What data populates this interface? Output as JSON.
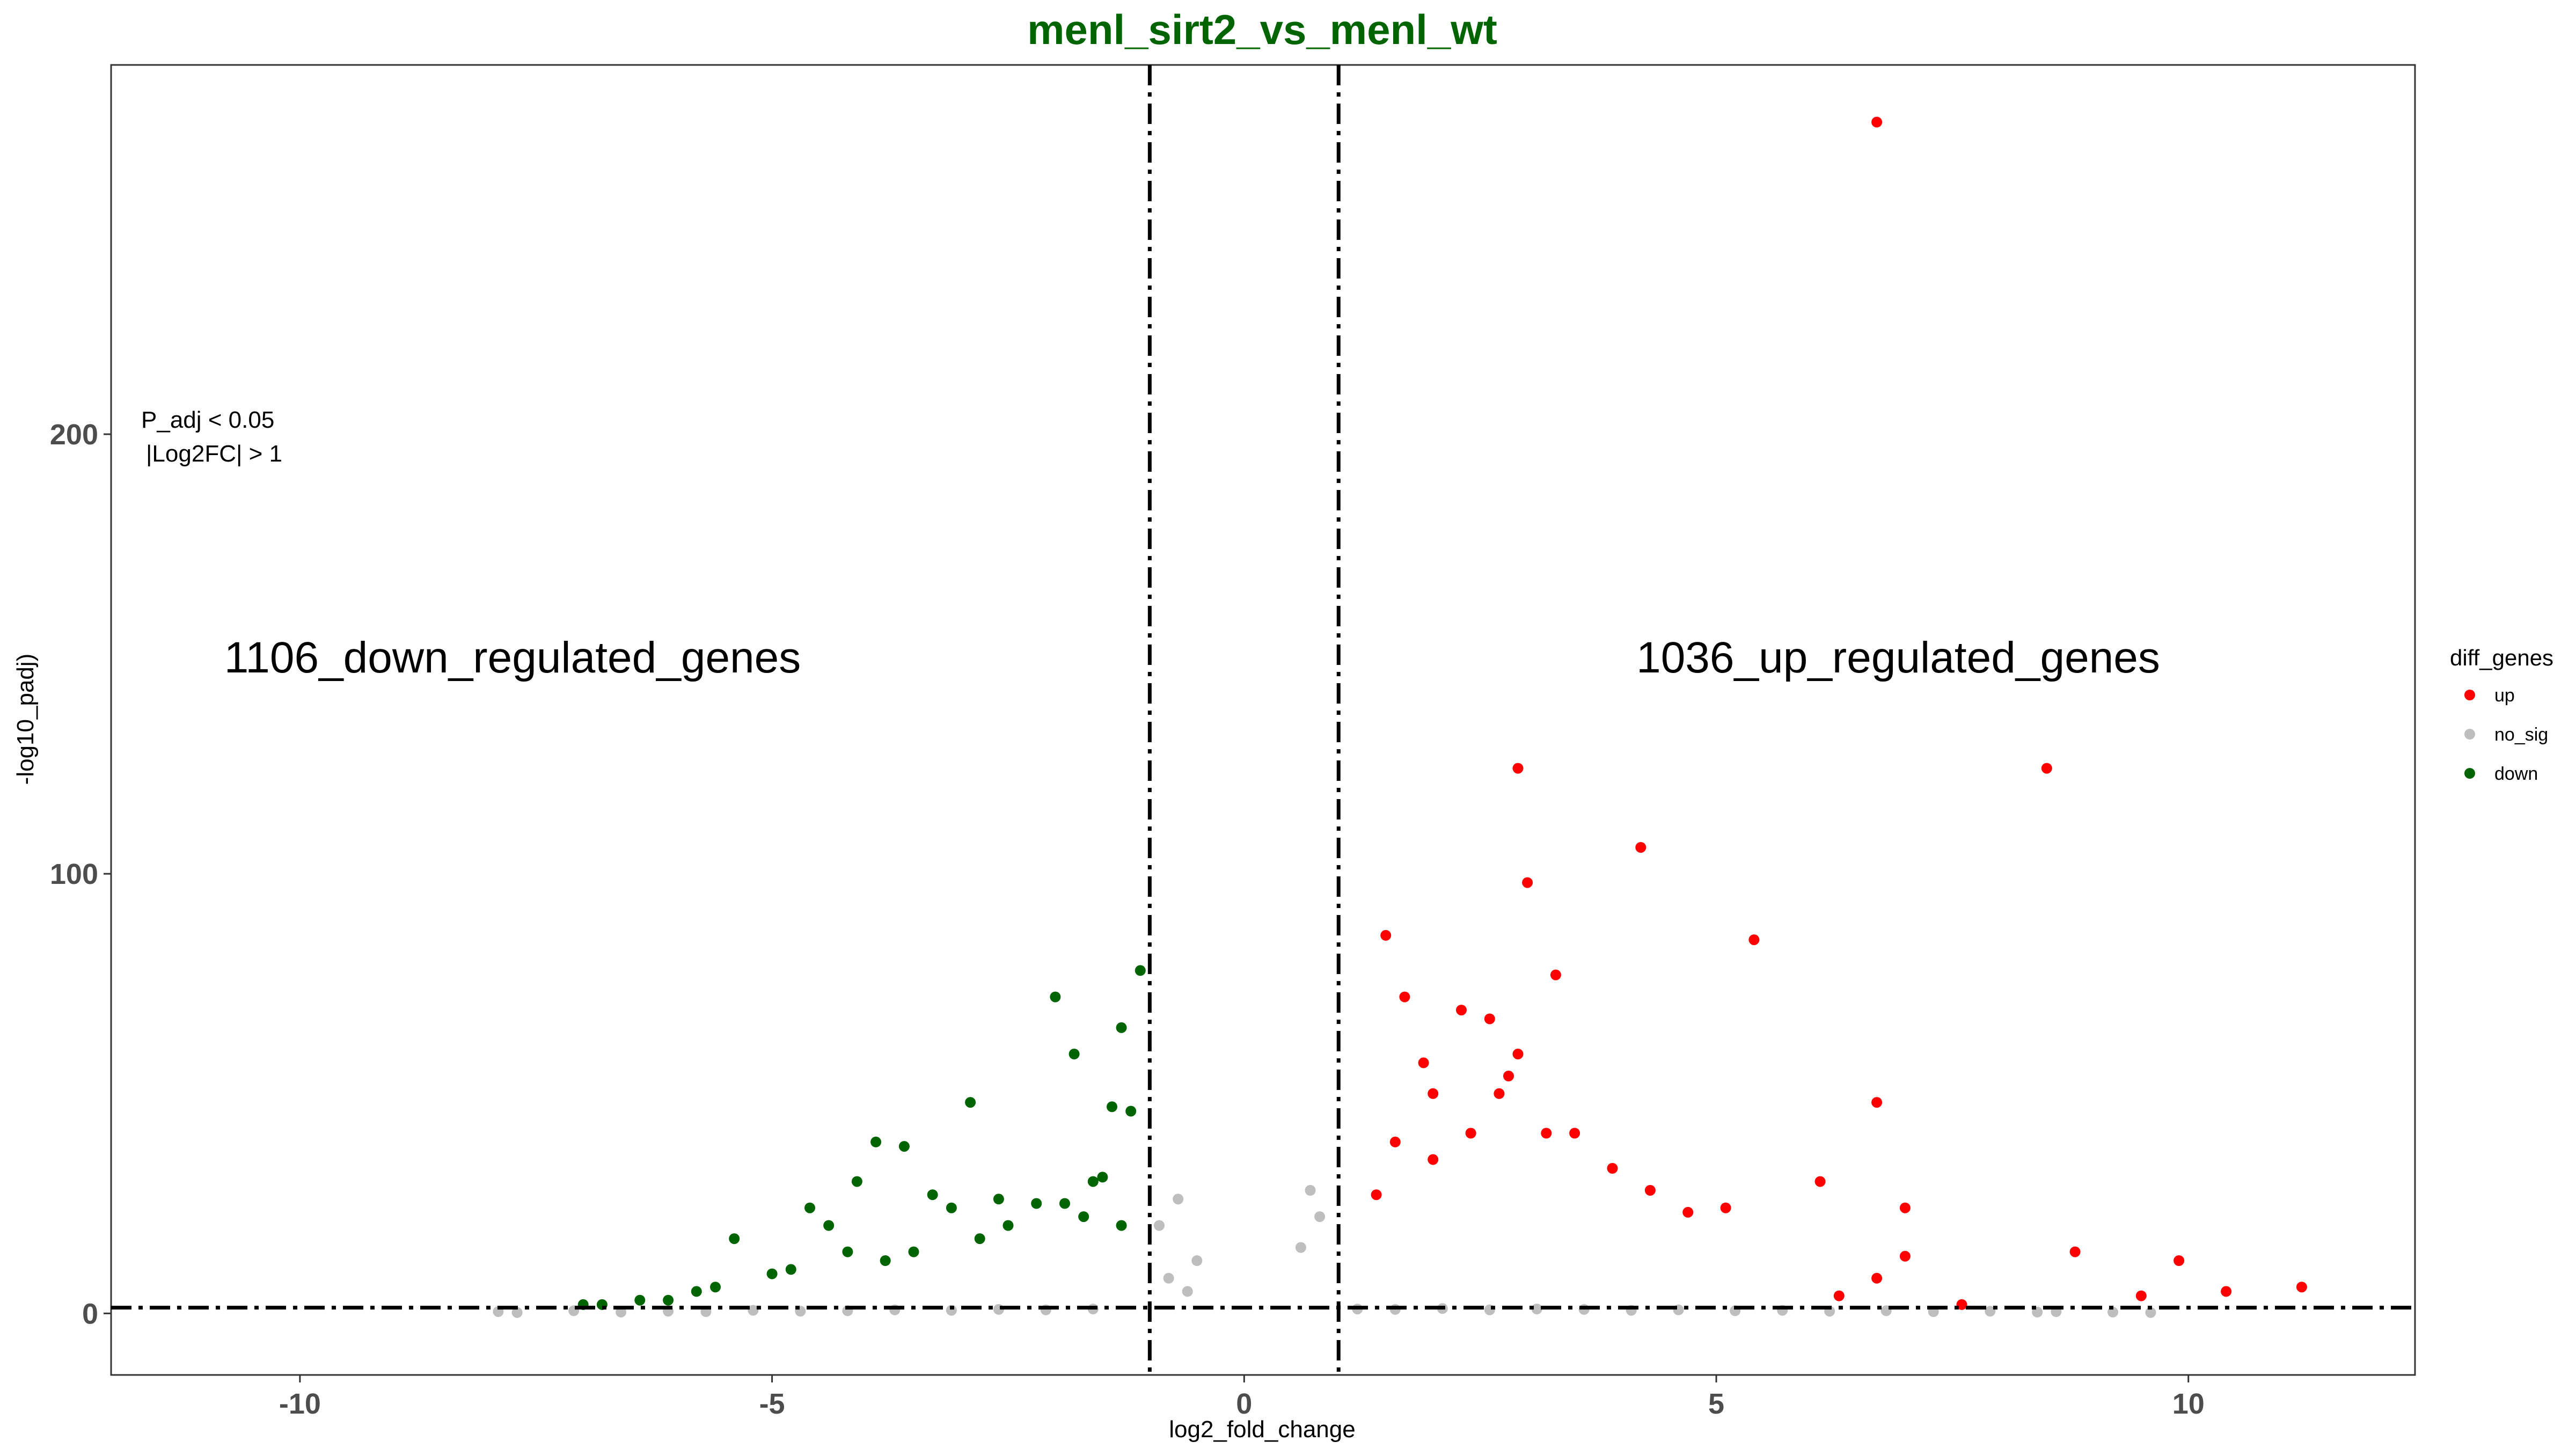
{
  "chart_data": {
    "type": "scatter",
    "title": "menl_sirt2_vs_menl_wt",
    "title_color": "#006400",
    "xlabel": "log2_fold_change",
    "ylabel": "-log10_padj)",
    "xlim": [
      -12,
      12.4
    ],
    "ylim": [
      -14,
      284
    ],
    "x_ticks": [
      -10,
      -5,
      0,
      5,
      10
    ],
    "y_ticks": [
      0,
      100,
      200
    ],
    "grid": false,
    "thresholds": {
      "fc_lines": [
        -1,
        1
      ],
      "padj_line": 1.3
    },
    "annotations": {
      "criteria_line1": "P_adj < 0.05",
      "criteria_line2": "|Log2FC| > 1",
      "down_count": "1106_down_regulated_genes",
      "up_count": "1036_up_regulated_genes"
    },
    "legend": {
      "title": "diff_genes",
      "position": "right",
      "items": [
        {
          "label": "up",
          "color": "#ff0000"
        },
        {
          "label": "no_sig",
          "color": "#bebebe"
        },
        {
          "label": "down",
          "color": "#006400"
        }
      ]
    },
    "series": [
      {
        "name": "up",
        "color": "#ff0000",
        "x": [
          6.7,
          8.5,
          2.9,
          4.2,
          3.0,
          1.5,
          5.4,
          3.3,
          1.7,
          2.3,
          2.6,
          2.9,
          1.9,
          2.8,
          2.0,
          6.7,
          2.4,
          1.6,
          3.2,
          2.7,
          3.5,
          6.1,
          3.9,
          2.0,
          1.4,
          7.0,
          4.3,
          5.1,
          4.7,
          7.0,
          8.8,
          9.9,
          10.4,
          11.2,
          9.5,
          6.7,
          7.6,
          6.3
        ],
        "y": [
          271,
          124,
          124,
          106,
          98,
          86,
          85,
          77,
          72,
          69,
          67,
          59,
          57,
          54,
          50,
          48,
          41,
          39,
          41,
          50,
          41,
          30,
          33,
          35,
          27,
          24,
          28,
          24,
          23,
          13,
          14,
          12,
          5,
          6,
          4,
          8,
          2,
          4
        ]
      },
      {
        "name": "down",
        "color": "#006400",
        "x": [
          -1.1,
          -2.0,
          -1.3,
          -1.8,
          -2.9,
          -1.4,
          -1.2,
          -3.6,
          -3.9,
          -4.1,
          -3.3,
          -2.6,
          -1.6,
          -1.5,
          -4.6,
          -5.4,
          -4.4,
          -3.1,
          -2.2,
          -5.8,
          -6.1,
          -6.8,
          -5.0,
          -4.2,
          -2.5,
          -1.7,
          -3.8,
          -4.8,
          -5.6,
          -6.4,
          -7.0,
          -2.8,
          -3.5,
          -1.9,
          -1.3
        ],
        "y": [
          78,
          72,
          65,
          59,
          48,
          47,
          46,
          38,
          39,
          30,
          27,
          26,
          30,
          31,
          24,
          17,
          20,
          24,
          25,
          5,
          3,
          2,
          9,
          14,
          20,
          22,
          12,
          10,
          6,
          3,
          2,
          17,
          14,
          25,
          20
        ]
      },
      {
        "name": "no_sig",
        "color": "#bebebe",
        "x": [
          -7.9,
          -7.7,
          -7.1,
          -6.6,
          -6.1,
          -5.7,
          -5.2,
          -4.7,
          -4.2,
          -3.7,
          -3.1,
          -2.6,
          -2.1,
          -1.6,
          1.2,
          1.6,
          2.1,
          2.6,
          3.1,
          3.6,
          4.1,
          4.6,
          5.2,
          5.7,
          6.2,
          6.8,
          7.3,
          7.9,
          8.4,
          8.6,
          9.2,
          9.6,
          0.7,
          0.8,
          0.6,
          -0.7,
          -0.9,
          -0.5,
          -0.8,
          -0.6
        ],
        "y": [
          0.4,
          0.2,
          0.6,
          0.3,
          0.5,
          0.4,
          0.7,
          0.5,
          0.6,
          0.8,
          0.7,
          0.9,
          0.8,
          1.0,
          1.0,
          0.9,
          1.1,
          0.8,
          1.0,
          0.9,
          0.7,
          0.8,
          0.6,
          0.7,
          0.5,
          0.6,
          0.4,
          0.5,
          0.3,
          0.4,
          0.3,
          0.2,
          28,
          22,
          15,
          26,
          20,
          12,
          8,
          5
        ]
      }
    ]
  }
}
